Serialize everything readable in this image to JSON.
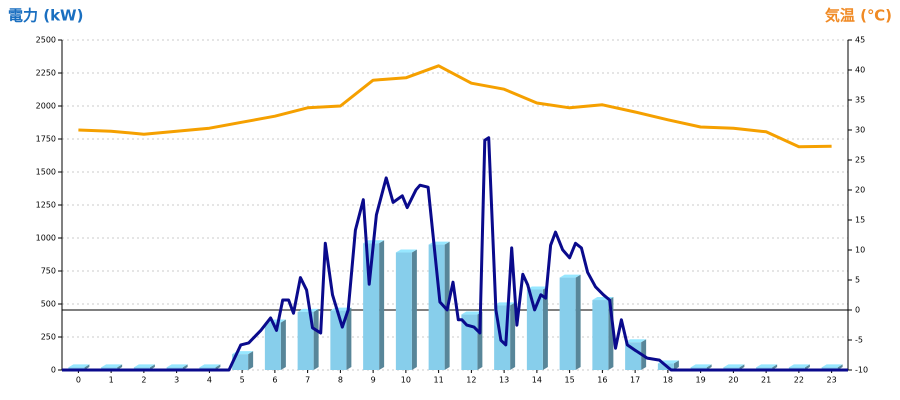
{
  "chart_data": {
    "type": "combo",
    "y_title": "電力 (kW)",
    "y2_title": "気温 (℃)",
    "y_title_color": "#1a6fc0",
    "y2_title_color": "#f08a24",
    "categories": [
      "0",
      "1",
      "2",
      "3",
      "4",
      "5",
      "6",
      "7",
      "8",
      "9",
      "10",
      "11",
      "12",
      "13",
      "14",
      "15",
      "16",
      "17",
      "18",
      "19",
      "20",
      "21",
      "22",
      "23"
    ],
    "xlim": [
      -0.5,
      23.5
    ],
    "ylim": [
      0,
      2500
    ],
    "yticks": [
      0,
      250,
      500,
      750,
      1000,
      1250,
      1500,
      1750,
      2000,
      2250,
      2500
    ],
    "y2lim": [
      -10,
      45
    ],
    "y2ticks": [
      -10,
      -5,
      0,
      5,
      10,
      15,
      20,
      25,
      30,
      35,
      40,
      45
    ],
    "grid": true,
    "y2_zero_line": true,
    "series": [
      {
        "type": "bar",
        "color": "#87ceeb",
        "values": [
          20,
          20,
          20,
          20,
          20,
          120,
          360,
          440,
          450,
          960,
          890,
          950,
          420,
          490,
          610,
          700,
          530,
          210,
          50,
          20,
          20,
          20,
          20,
          20
        ]
      },
      {
        "type": "line",
        "color": "#0a0a8c",
        "x": [
          -0.5,
          4.6,
          4.96,
          5.2,
          5.57,
          5.87,
          6.05,
          6.24,
          6.42,
          6.57,
          6.78,
          6.97,
          7.15,
          7.4,
          7.54,
          7.76,
          8.06,
          8.24,
          8.46,
          8.7,
          8.88,
          9.1,
          9.4,
          9.61,
          9.89,
          10.04,
          10.31,
          10.43,
          10.68,
          11.04,
          11.26,
          11.44,
          11.6,
          11.71,
          11.86,
          12.08,
          12.26,
          12.41,
          12.53,
          12.75,
          12.9,
          13.05,
          13.23,
          13.39,
          13.57,
          13.72,
          13.93,
          14.12,
          14.27,
          14.42,
          14.57,
          14.79,
          15.0,
          15.18,
          15.36,
          15.55,
          15.79,
          16.03,
          16.22,
          16.4,
          16.58,
          16.76,
          17.0,
          17.37,
          17.74,
          18.1,
          23.5
        ],
        "values": [
          0,
          0,
          190,
          205,
          300,
          395,
          300,
          530,
          530,
          430,
          700,
          605,
          320,
          280,
          960,
          570,
          325,
          455,
          1060,
          1290,
          650,
          1175,
          1455,
          1270,
          1320,
          1230,
          1365,
          1400,
          1385,
          515,
          455,
          665,
          380,
          380,
          340,
          325,
          280,
          1740,
          1760,
          455,
          225,
          190,
          925,
          340,
          725,
          645,
          455,
          570,
          545,
          945,
          1045,
          910,
          850,
          960,
          925,
          740,
          630,
          570,
          530,
          165,
          380,
          190,
          150,
          90,
          75,
          0,
          0
        ]
      },
      {
        "type": "line",
        "axis": "y2",
        "color": "#f5a000",
        "values": [
          30,
          29.8,
          29.3,
          29.8,
          30.3,
          31.3,
          32.3,
          33.7,
          34,
          38.3,
          38.7,
          40.7,
          37.8,
          36.8,
          34.5,
          33.7,
          34.2,
          33,
          31.7,
          30.5,
          30.3,
          29.7,
          27.2,
          27.3
        ]
      }
    ]
  }
}
